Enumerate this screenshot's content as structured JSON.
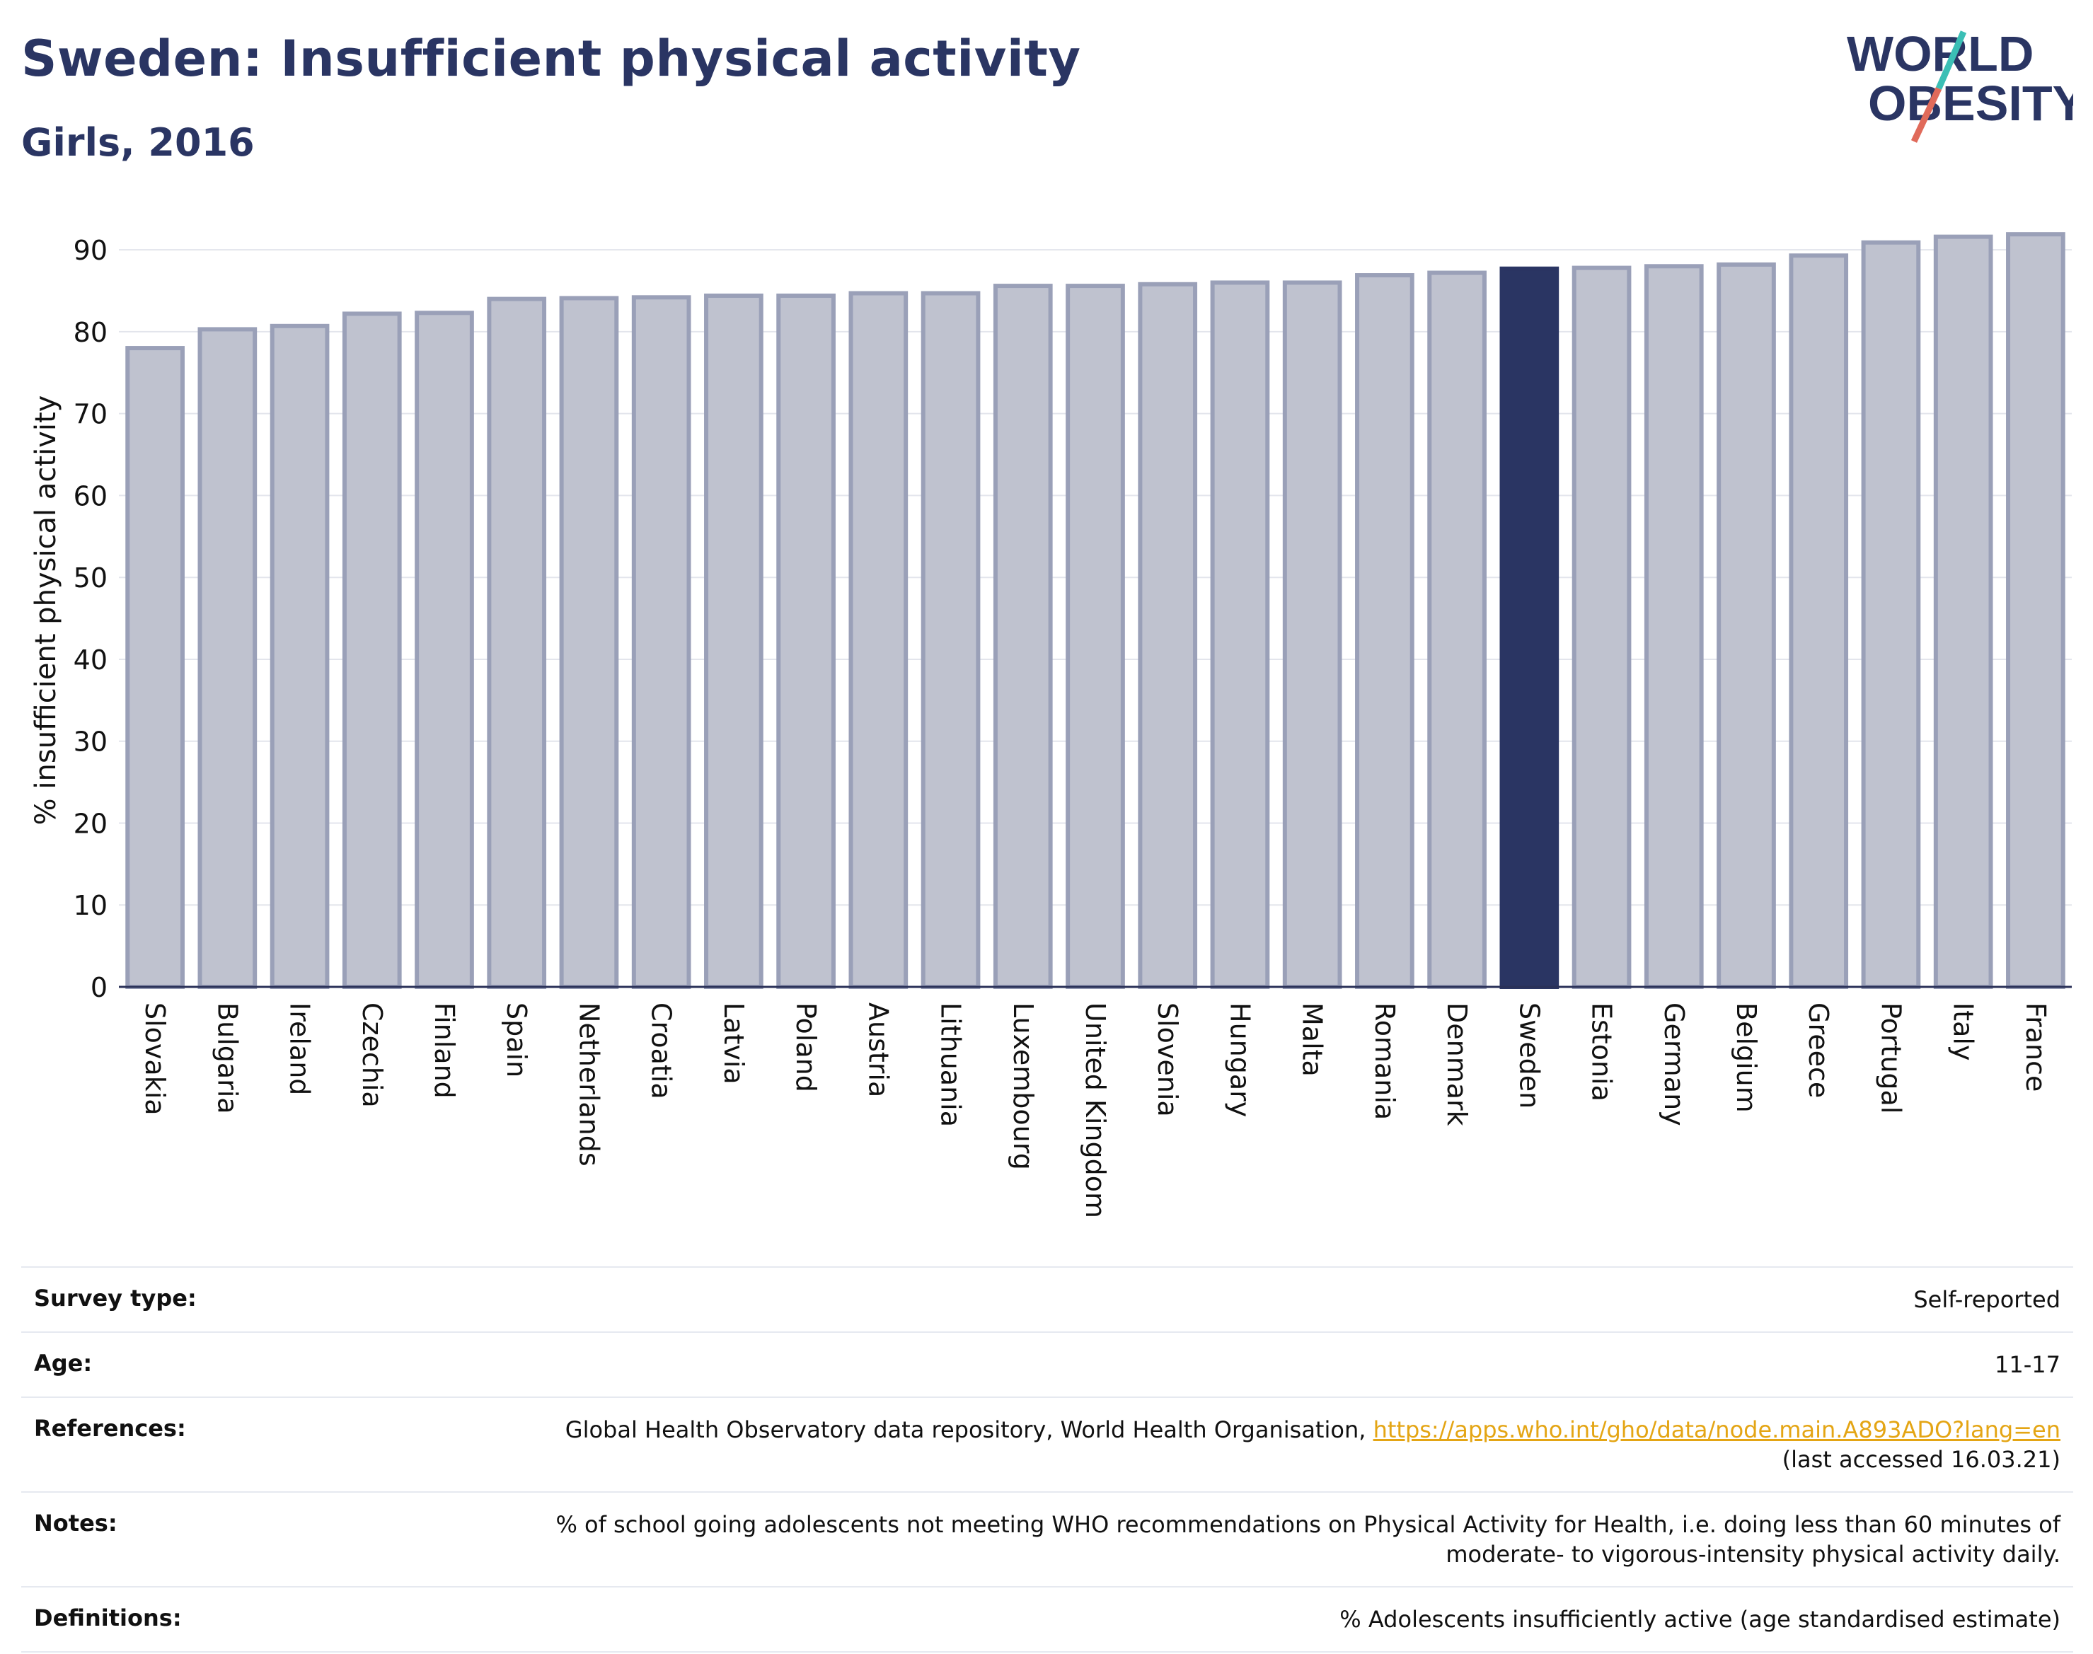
{
  "header": {
    "title": "Sweden: Insufficient physical activity",
    "subtitle": "Girls, 2016"
  },
  "logo": {
    "line1": "WORLD",
    "line2": "OBESITY"
  },
  "colors": {
    "bar_default": "#bfc2cf",
    "bar_edge": "#9aa0b8",
    "bar_highlight": "#2a3563",
    "text": "#2a3563",
    "link": "#e4a514"
  },
  "chart_data": {
    "type": "bar",
    "title": "Sweden: Insufficient physical activity",
    "subtitle": "Girls, 2016",
    "xlabel": "",
    "ylabel": "% insufficient physical activity",
    "ylim": [
      0,
      92
    ],
    "yticks": [
      0,
      10,
      20,
      30,
      40,
      50,
      60,
      70,
      80,
      90
    ],
    "grid": true,
    "highlight": "Sweden",
    "categories": [
      "Slovakia",
      "Bulgaria",
      "Ireland",
      "Czechia",
      "Finland",
      "Spain",
      "Netherlands",
      "Croatia",
      "Latvia",
      "Poland",
      "Austria",
      "Lithuania",
      "Luxembourg",
      "United Kingdom",
      "Slovenia",
      "Hungary",
      "Malta",
      "Romania",
      "Denmark",
      "Sweden",
      "Estonia",
      "Germany",
      "Belgium",
      "Greece",
      "Portugal",
      "Italy",
      "France"
    ],
    "values": [
      78.0,
      80.3,
      80.7,
      82.2,
      82.3,
      84.0,
      84.1,
      84.2,
      84.4,
      84.4,
      84.7,
      84.7,
      85.6,
      85.6,
      85.8,
      86.0,
      86.0,
      86.9,
      87.2,
      87.7,
      87.8,
      88.0,
      88.2,
      89.3,
      90.9,
      91.6,
      91.9
    ]
  },
  "info": {
    "survey_type_label": "Survey type:",
    "survey_type_value": "Self-reported",
    "age_label": "Age:",
    "age_value": "11-17",
    "references_label": "References:",
    "references_text": "Global Health Observatory data repository, World Health Organisation, ",
    "references_link": "https://apps.who.int/gho/data/node.main.A893ADO?lang=en",
    "references_suffix": "(last accessed 16.03.21)",
    "notes_label": "Notes:",
    "notes_value": "% of school going adolescents not meeting WHO recommendations on Physical Activity for Health, i.e. doing less than 60 minutes of moderate- to vigorous-intensity physical activity daily.",
    "definitions_label": "Definitions:",
    "definitions_value": "% Adolescents insufficiently active (age standardised estimate)"
  }
}
